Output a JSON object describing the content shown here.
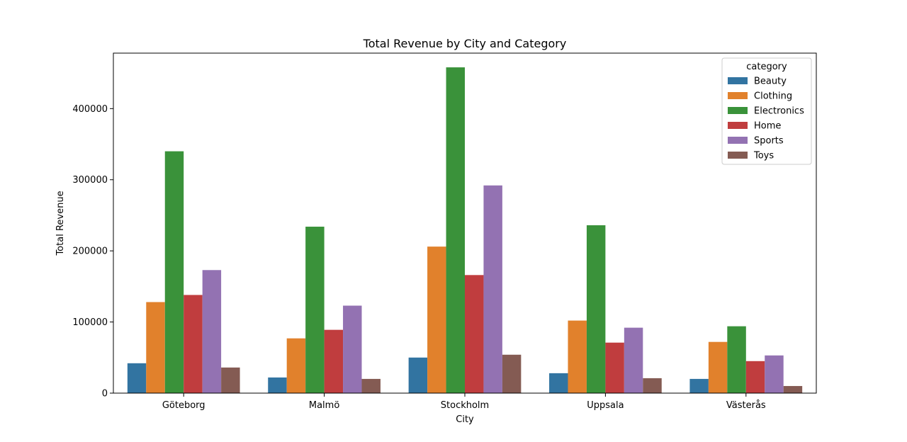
{
  "chart_data": {
    "type": "bar",
    "title": "Total Revenue by City and Category",
    "xlabel": "City",
    "ylabel": "Total Revenue",
    "categories": [
      "Göteborg",
      "Malmö",
      "Stockholm",
      "Uppsala",
      "Västerås"
    ],
    "ylim": [
      0,
      478000
    ],
    "yticks": [
      0,
      100000,
      200000,
      300000,
      400000
    ],
    "ytick_labels": [
      "0",
      "100000",
      "200000",
      "300000",
      "400000"
    ],
    "grid": false,
    "legend": {
      "title": "category",
      "placement": "top-right"
    },
    "series": [
      {
        "name": "Beauty",
        "color": "#3274a1",
        "values": [
          42000,
          22000,
          50000,
          28000,
          20000
        ]
      },
      {
        "name": "Clothing",
        "color": "#e1812c",
        "values": [
          128000,
          77000,
          206000,
          102000,
          72000
        ]
      },
      {
        "name": "Electronics",
        "color": "#3a923a",
        "values": [
          340000,
          234000,
          458000,
          236000,
          94000
        ]
      },
      {
        "name": "Home",
        "color": "#c03d3e",
        "values": [
          138000,
          89000,
          166000,
          71000,
          45000
        ]
      },
      {
        "name": "Sports",
        "color": "#9372b2",
        "values": [
          173000,
          123000,
          292000,
          92000,
          53000
        ]
      },
      {
        "name": "Toys",
        "color": "#845b53",
        "values": [
          36000,
          20000,
          54000,
          21000,
          10000
        ]
      }
    ]
  }
}
